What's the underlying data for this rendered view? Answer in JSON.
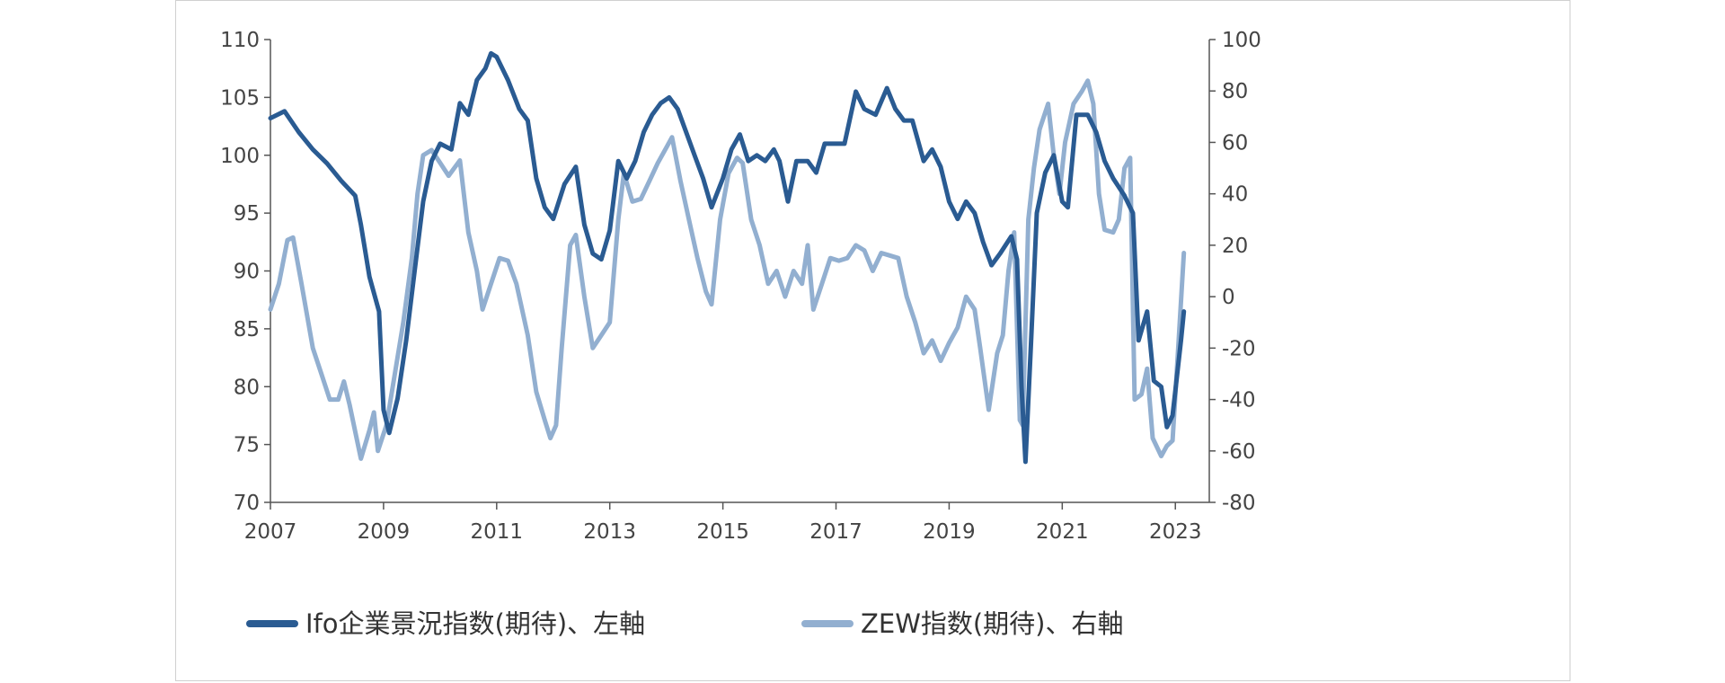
{
  "chart_data": {
    "type": "line",
    "title": "",
    "xlabel": "",
    "ylabel": "",
    "x_ticks": [
      "2007",
      "2009",
      "2011",
      "2013",
      "2015",
      "2017",
      "2019",
      "2021",
      "2023"
    ],
    "xlim": [
      2007,
      2023.6
    ],
    "y_left": {
      "lim": [
        70,
        110
      ],
      "ticks": [
        110,
        105,
        100,
        95,
        90,
        85,
        80,
        75,
        70
      ]
    },
    "y_right": {
      "lim": [
        -80,
        100
      ],
      "ticks": [
        100,
        80,
        60,
        40,
        20,
        0,
        -20,
        -40,
        -60,
        -80
      ]
    },
    "grid": false,
    "legend_position": "bottom",
    "series": [
      {
        "name": "Ifo企業景況指数(期待)、左軸",
        "axis": "left",
        "color": "#2a5b92",
        "points": [
          [
            2007.0,
            103.2
          ],
          [
            2007.25,
            103.8
          ],
          [
            2007.5,
            102.0
          ],
          [
            2007.75,
            100.5
          ],
          [
            2008.0,
            99.3
          ],
          [
            2008.25,
            97.8
          ],
          [
            2008.5,
            96.5
          ],
          [
            2008.6,
            94.0
          ],
          [
            2008.75,
            89.5
          ],
          [
            2008.92,
            86.5
          ],
          [
            2009.0,
            78.0
          ],
          [
            2009.1,
            76.0
          ],
          [
            2009.25,
            79.0
          ],
          [
            2009.4,
            84.0
          ],
          [
            2009.55,
            90.0
          ],
          [
            2009.7,
            96.0
          ],
          [
            2009.85,
            99.5
          ],
          [
            2010.0,
            101.0
          ],
          [
            2010.2,
            100.5
          ],
          [
            2010.35,
            104.5
          ],
          [
            2010.5,
            103.5
          ],
          [
            2010.65,
            106.5
          ],
          [
            2010.8,
            107.5
          ],
          [
            2010.9,
            108.8
          ],
          [
            2011.0,
            108.5
          ],
          [
            2011.2,
            106.5
          ],
          [
            2011.4,
            104.0
          ],
          [
            2011.55,
            103.0
          ],
          [
            2011.7,
            98.0
          ],
          [
            2011.85,
            95.5
          ],
          [
            2012.0,
            94.5
          ],
          [
            2012.2,
            97.5
          ],
          [
            2012.4,
            99.0
          ],
          [
            2012.55,
            94.0
          ],
          [
            2012.7,
            91.5
          ],
          [
            2012.85,
            91.0
          ],
          [
            2013.0,
            93.5
          ],
          [
            2013.15,
            99.5
          ],
          [
            2013.3,
            98.0
          ],
          [
            2013.45,
            99.5
          ],
          [
            2013.6,
            102.0
          ],
          [
            2013.75,
            103.5
          ],
          [
            2013.9,
            104.5
          ],
          [
            2014.05,
            105.0
          ],
          [
            2014.2,
            104.0
          ],
          [
            2014.35,
            102.0
          ],
          [
            2014.5,
            100.0
          ],
          [
            2014.65,
            98.0
          ],
          [
            2014.8,
            95.5
          ],
          [
            2015.0,
            98.0
          ],
          [
            2015.15,
            100.5
          ],
          [
            2015.3,
            101.8
          ],
          [
            2015.45,
            99.5
          ],
          [
            2015.6,
            100.0
          ],
          [
            2015.75,
            99.5
          ],
          [
            2015.9,
            100.5
          ],
          [
            2016.0,
            99.5
          ],
          [
            2016.15,
            96.0
          ],
          [
            2016.3,
            99.5
          ],
          [
            2016.5,
            99.5
          ],
          [
            2016.65,
            98.5
          ],
          [
            2016.8,
            101.0
          ],
          [
            2017.0,
            101.0
          ],
          [
            2017.15,
            101.0
          ],
          [
            2017.35,
            105.5
          ],
          [
            2017.5,
            104.0
          ],
          [
            2017.7,
            103.5
          ],
          [
            2017.9,
            105.8
          ],
          [
            2018.05,
            104.0
          ],
          [
            2018.2,
            103.0
          ],
          [
            2018.35,
            103.0
          ],
          [
            2018.55,
            99.5
          ],
          [
            2018.7,
            100.5
          ],
          [
            2018.85,
            99.0
          ],
          [
            2019.0,
            96.0
          ],
          [
            2019.15,
            94.5
          ],
          [
            2019.3,
            96.0
          ],
          [
            2019.45,
            95.0
          ],
          [
            2019.6,
            92.5
          ],
          [
            2019.75,
            90.5
          ],
          [
            2019.9,
            91.5
          ],
          [
            2020.1,
            93.0
          ],
          [
            2020.2,
            91.0
          ],
          [
            2020.28,
            80.0
          ],
          [
            2020.35,
            73.5
          ],
          [
            2020.45,
            84.0
          ],
          [
            2020.55,
            95.0
          ],
          [
            2020.7,
            98.5
          ],
          [
            2020.85,
            100.0
          ],
          [
            2021.0,
            96.0
          ],
          [
            2021.1,
            95.5
          ],
          [
            2021.25,
            103.5
          ],
          [
            2021.45,
            103.5
          ],
          [
            2021.6,
            102.0
          ],
          [
            2021.75,
            99.5
          ],
          [
            2021.9,
            98.0
          ],
          [
            2022.1,
            96.5
          ],
          [
            2022.25,
            95.0
          ],
          [
            2022.35,
            84.0
          ],
          [
            2022.5,
            86.5
          ],
          [
            2022.62,
            80.5
          ],
          [
            2022.75,
            80.0
          ],
          [
            2022.85,
            76.5
          ],
          [
            2022.95,
            77.5
          ],
          [
            2023.1,
            84.0
          ],
          [
            2023.15,
            86.5
          ]
        ]
      },
      {
        "name": "ZEW指数(期待)、右軸",
        "axis": "right",
        "color": "#92afd0",
        "points": [
          [
            2007.0,
            -5.0
          ],
          [
            2007.15,
            5.0
          ],
          [
            2007.3,
            22.0
          ],
          [
            2007.4,
            23.0
          ],
          [
            2007.55,
            5.0
          ],
          [
            2007.75,
            -20.0
          ],
          [
            2007.9,
            -30.0
          ],
          [
            2008.05,
            -40.0
          ],
          [
            2008.2,
            -40.0
          ],
          [
            2008.3,
            -33.0
          ],
          [
            2008.4,
            -42.0
          ],
          [
            2008.6,
            -63.0
          ],
          [
            2008.75,
            -52.0
          ],
          [
            2008.83,
            -45.0
          ],
          [
            2008.9,
            -60.0
          ],
          [
            2009.05,
            -50.0
          ],
          [
            2009.2,
            -30.0
          ],
          [
            2009.35,
            -10.0
          ],
          [
            2009.5,
            15.0
          ],
          [
            2009.6,
            40.0
          ],
          [
            2009.7,
            55.0
          ],
          [
            2009.85,
            57.0
          ],
          [
            2010.0,
            52.0
          ],
          [
            2010.15,
            47.0
          ],
          [
            2010.35,
            53.0
          ],
          [
            2010.5,
            25.0
          ],
          [
            2010.65,
            10.0
          ],
          [
            2010.75,
            -5.0
          ],
          [
            2010.9,
            5.0
          ],
          [
            2011.05,
            15.0
          ],
          [
            2011.2,
            14.0
          ],
          [
            2011.35,
            5.0
          ],
          [
            2011.55,
            -15.0
          ],
          [
            2011.7,
            -37.0
          ],
          [
            2011.85,
            -48.0
          ],
          [
            2011.95,
            -55.0
          ],
          [
            2012.05,
            -50.0
          ],
          [
            2012.15,
            -20.0
          ],
          [
            2012.3,
            20.0
          ],
          [
            2012.4,
            24.0
          ],
          [
            2012.55,
            0.0
          ],
          [
            2012.7,
            -20.0
          ],
          [
            2012.85,
            -15.0
          ],
          [
            2013.0,
            -10.0
          ],
          [
            2013.15,
            30.0
          ],
          [
            2013.25,
            48.0
          ],
          [
            2013.4,
            37.0
          ],
          [
            2013.55,
            38.0
          ],
          [
            2013.7,
            45.0
          ],
          [
            2013.85,
            52.0
          ],
          [
            2014.0,
            58.0
          ],
          [
            2014.1,
            62.0
          ],
          [
            2014.25,
            45.0
          ],
          [
            2014.4,
            30.0
          ],
          [
            2014.55,
            15.0
          ],
          [
            2014.7,
            2.0
          ],
          [
            2014.8,
            -3.0
          ],
          [
            2014.95,
            30.0
          ],
          [
            2015.1,
            48.0
          ],
          [
            2015.25,
            54.0
          ],
          [
            2015.35,
            52.0
          ],
          [
            2015.5,
            30.0
          ],
          [
            2015.65,
            20.0
          ],
          [
            2015.8,
            5.0
          ],
          [
            2015.95,
            10.0
          ],
          [
            2016.1,
            0.0
          ],
          [
            2016.25,
            10.0
          ],
          [
            2016.4,
            5.0
          ],
          [
            2016.5,
            20.0
          ],
          [
            2016.6,
            -5.0
          ],
          [
            2016.75,
            5.0
          ],
          [
            2016.9,
            15.0
          ],
          [
            2017.05,
            14.0
          ],
          [
            2017.2,
            15.0
          ],
          [
            2017.35,
            20.0
          ],
          [
            2017.5,
            18.0
          ],
          [
            2017.65,
            10.0
          ],
          [
            2017.8,
            17.0
          ],
          [
            2017.95,
            16.0
          ],
          [
            2018.1,
            15.0
          ],
          [
            2018.25,
            0.0
          ],
          [
            2018.4,
            -10.0
          ],
          [
            2018.55,
            -22.0
          ],
          [
            2018.7,
            -17.0
          ],
          [
            2018.85,
            -25.0
          ],
          [
            2019.0,
            -18.0
          ],
          [
            2019.15,
            -12.0
          ],
          [
            2019.3,
            0.0
          ],
          [
            2019.45,
            -5.0
          ],
          [
            2019.55,
            -20.0
          ],
          [
            2019.7,
            -44.0
          ],
          [
            2019.85,
            -22.0
          ],
          [
            2019.95,
            -15.0
          ],
          [
            2020.05,
            10.0
          ],
          [
            2020.15,
            25.0
          ],
          [
            2020.25,
            -48.0
          ],
          [
            2020.3,
            -50.0
          ],
          [
            2020.4,
            30.0
          ],
          [
            2020.5,
            50.0
          ],
          [
            2020.6,
            65.0
          ],
          [
            2020.75,
            75.0
          ],
          [
            2020.85,
            55.0
          ],
          [
            2020.95,
            40.0
          ],
          [
            2021.05,
            60.0
          ],
          [
            2021.2,
            75.0
          ],
          [
            2021.35,
            80.0
          ],
          [
            2021.45,
            84.0
          ],
          [
            2021.55,
            75.0
          ],
          [
            2021.65,
            40.0
          ],
          [
            2021.75,
            26.0
          ],
          [
            2021.9,
            25.0
          ],
          [
            2022.0,
            30.0
          ],
          [
            2022.1,
            50.0
          ],
          [
            2022.2,
            54.0
          ],
          [
            2022.28,
            -40.0
          ],
          [
            2022.4,
            -38.0
          ],
          [
            2022.5,
            -28.0
          ],
          [
            2022.6,
            -55.0
          ],
          [
            2022.75,
            -62.0
          ],
          [
            2022.85,
            -58.0
          ],
          [
            2022.95,
            -56.0
          ],
          [
            2023.05,
            -20.0
          ],
          [
            2023.15,
            17.0
          ]
        ]
      }
    ]
  }
}
